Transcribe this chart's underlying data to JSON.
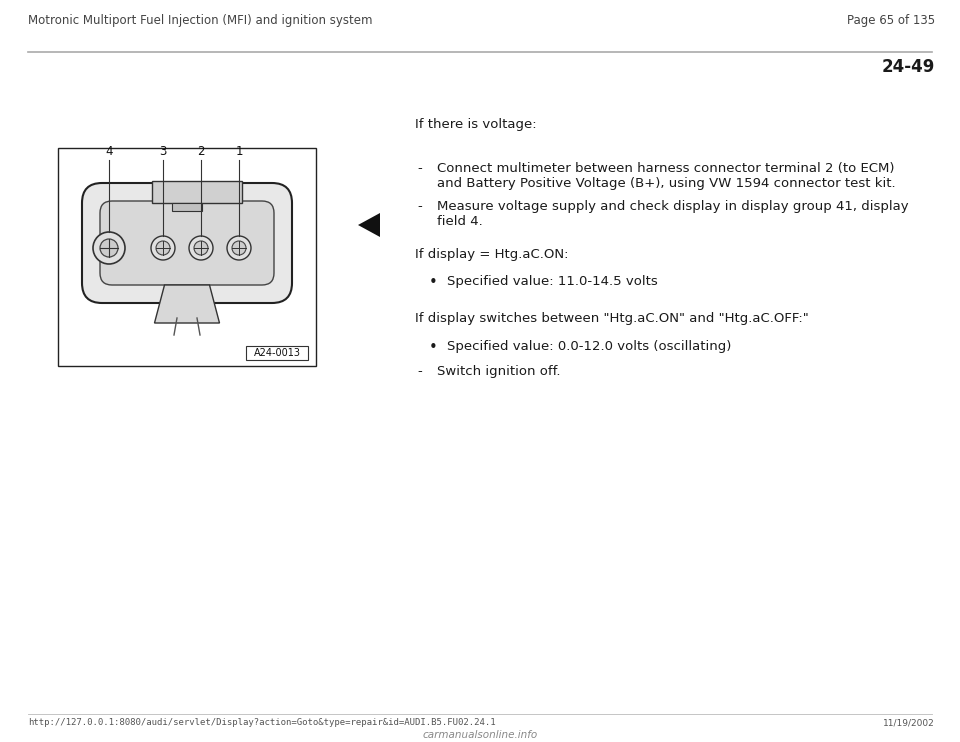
{
  "header_left": "Motronic Multiport Fuel Injection (MFI) and ignition system",
  "header_right": "Page 65 of 135",
  "section_number": "24-49",
  "footer_url": "http://127.0.0.1:8080/audi/servlet/Display?action=Goto&type=repair&id=AUDI.B5.FU02.24.1",
  "footer_date": "11/19/2002",
  "footer_logo": "carmanualsonline.info",
  "text_voltage": "If there is voltage:",
  "bullet1_dash": "-",
  "bullet1_line1": "Connect multimeter between harness connector terminal 2 (to ECM)",
  "bullet1_line2": "and Battery Positive Voltage (B+), using VW 1594 connector test kit.",
  "bullet2_dash": "-",
  "bullet2_line1": "Measure voltage supply and check display in display group 41, display",
  "bullet2_line2": "field 4.",
  "text_display_on": "If display = Htg.aC.ON:",
  "bullet3": "Specified value: 11.0-14.5 volts",
  "text_display_switch": "If display switches between \"Htg.aC.ON\" and \"Htg.aC.OFF:\"",
  "bullet4": "Specified value: 0.0-12.0 volts (oscillating)",
  "dash2_text": "Switch ignition off.",
  "image_label": "A24-0013",
  "connector_numbers": [
    "4",
    "3",
    "2",
    "1"
  ],
  "bg_color": "#ffffff",
  "text_color": "#1a1a1a",
  "header_color": "#444444",
  "font_size_header": 8.5,
  "font_size_body": 9.5,
  "font_size_section": 12.0,
  "fig_width": 9.6,
  "fig_height": 7.42,
  "dpi": 100
}
